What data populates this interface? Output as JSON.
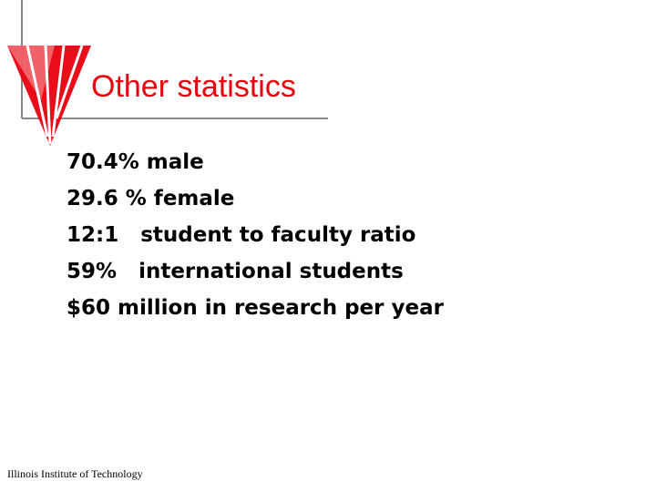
{
  "title": "Other statistics",
  "items": [
    "70.4% male",
    "29.6 % female",
    "12:1   student to faculty ratio",
    "59%   international students",
    "$60 million in research per year"
  ],
  "footer": "Illinois Institute of Technology"
}
